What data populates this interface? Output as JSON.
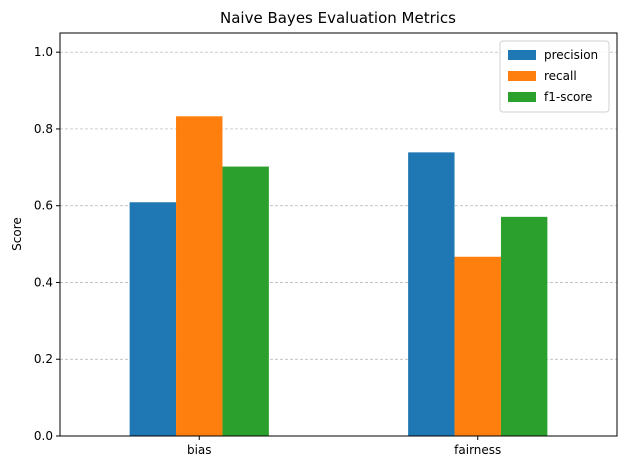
{
  "chart_data": {
    "type": "bar",
    "title": "Naive Bayes Evaluation Metrics",
    "xlabel": "",
    "ylabel": "Score",
    "categories": [
      "bias",
      "fairness"
    ],
    "series": [
      {
        "name": "precision",
        "color": "#1f77b4",
        "values": [
          0.609,
          0.739
        ]
      },
      {
        "name": "recall",
        "color": "#ff7f0e",
        "values": [
          0.833,
          0.467
        ]
      },
      {
        "name": "f1-score",
        "color": "#2ca02c",
        "values": [
          0.702,
          0.571
        ]
      }
    ],
    "ylim": [
      0,
      1.05
    ],
    "yticks": [
      0.0,
      0.2,
      0.4,
      0.6,
      0.8,
      1.0
    ],
    "ytick_labels": [
      "0.0",
      "0.2",
      "0.4",
      "0.6",
      "0.8",
      "1.0"
    ],
    "grid": "y-dashed",
    "legend_position": "top-right"
  }
}
